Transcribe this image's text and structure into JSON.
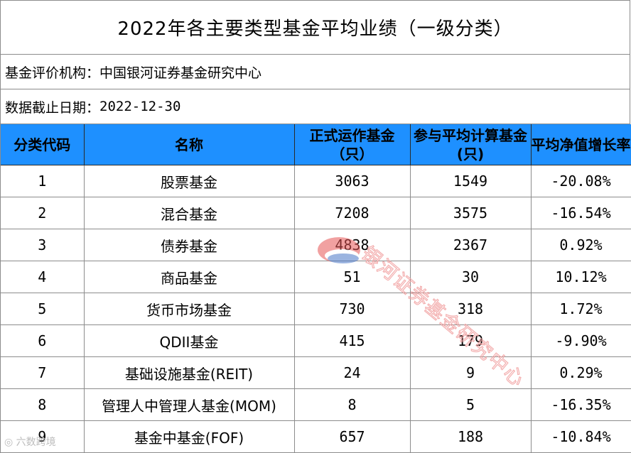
{
  "title": "2022年各主要类型基金平均业绩（一级分类）",
  "agency_label": "基金评价机构：",
  "agency_value": "中国银河证券基金研究中心",
  "date_label": "数据截止日期：",
  "date_value": "2022-12-30",
  "headers": [
    "分类代码",
    "名称",
    "正式运作基金（只）",
    "参与平均计算基金(只)",
    "平均净值增长率"
  ],
  "rows": [
    {
      "code": "1",
      "name": "股票基金",
      "funds": "3063",
      "counted": "1549",
      "growth": "-20.08%"
    },
    {
      "code": "2",
      "name": "混合基金",
      "funds": "7208",
      "counted": "3575",
      "growth": "-16.54%"
    },
    {
      "code": "3",
      "name": "债券基金",
      "funds": "4838",
      "counted": "2367",
      "growth": "0.92%"
    },
    {
      "code": "4",
      "name": "商品基金",
      "funds": "51",
      "counted": "30",
      "growth": "10.12%"
    },
    {
      "code": "5",
      "name": "货币市场基金",
      "funds": "730",
      "counted": "318",
      "growth": "1.72%"
    },
    {
      "code": "6",
      "name": "QDII基金",
      "funds": "415",
      "counted": "179",
      "growth": "-9.90%"
    },
    {
      "code": "7",
      "name": "基础设施基金(REIT)",
      "funds": "24",
      "counted": "9",
      "growth": "0.29%"
    },
    {
      "code": "8",
      "name": "管理人中管理人基金(MOM)",
      "funds": "8",
      "counted": "5",
      "growth": "-16.35%"
    },
    {
      "code": "9",
      "name": "基金中基金(FOF)",
      "funds": "657",
      "counted": "188",
      "growth": "-10.84%"
    }
  ],
  "watermark_text": "银河证券基金研究中心",
  "corner_watermark": "六数跨境",
  "colors": {
    "header_bg": "#1e90ff",
    "watermark": "#f2a3a3"
  },
  "icons": {
    "logo": "galaxy-logo-icon"
  }
}
